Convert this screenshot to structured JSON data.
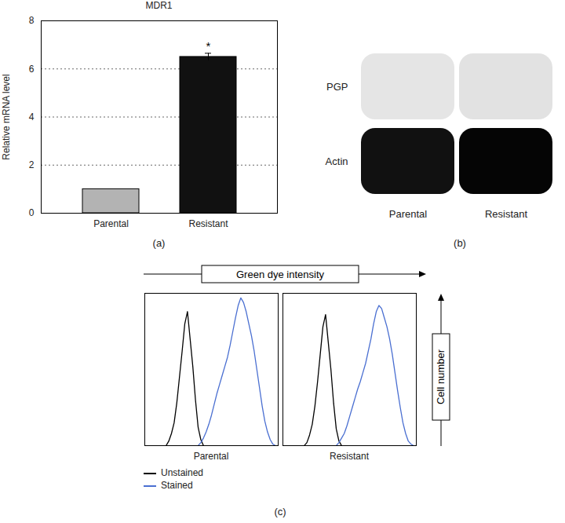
{
  "chart_data": [
    {
      "type": "bar",
      "title": "MDR1",
      "y_label": "Relative mRNA level",
      "caption": "(a)",
      "categories": [
        "Parental",
        "Resistant"
      ],
      "values": [
        1,
        6.5
      ],
      "errors": [
        0,
        0.15
      ],
      "colors": [
        "#b3b3b3",
        "#111111"
      ],
      "ylim": [
        0,
        8
      ],
      "yticks": [
        0,
        2,
        4,
        6,
        8
      ],
      "grid": true,
      "annotations": [
        {
          "category": "Resistant",
          "text": "*"
        }
      ]
    },
    {
      "type": "blot",
      "caption": "(b)",
      "rows": [
        "PGP",
        "Actin"
      ],
      "categories": [
        "Parental",
        "Resistant"
      ],
      "intensity": [
        [
          0.06,
          0.07
        ],
        [
          0.95,
          1.0
        ]
      ]
    },
    {
      "type": "line",
      "caption": "(c)",
      "x_label": "Green dye intensity",
      "y_label": "Cell number",
      "xlim": [
        0,
        100
      ],
      "ylim": [
        0,
        100
      ],
      "tick_labels": false,
      "panels": [
        {
          "title": "Parental",
          "series": [
            {
              "name": "Unstained",
              "color": "#000000",
              "x": [
                16,
                18,
                20,
                22,
                24,
                26,
                28,
                30,
                32,
                34,
                36,
                38,
                40,
                42,
                44
              ],
              "values": [
                0,
                3,
                8,
                15,
                28,
                45,
                62,
                80,
                88,
                70,
                52,
                30,
                12,
                4,
                0
              ]
            },
            {
              "name": "Stained",
              "color": "#4a6fd1",
              "x": [
                40,
                42,
                44,
                46,
                48,
                50,
                52,
                54,
                56,
                58,
                60,
                62,
                64,
                66,
                68,
                70,
                72,
                74,
                76,
                78,
                80,
                82,
                84,
                86,
                88,
                90,
                92,
                94,
                96,
                98
              ],
              "values": [
                0,
                2,
                5,
                9,
                14,
                20,
                27,
                34,
                40,
                46,
                52,
                58,
                66,
                75,
                84,
                92,
                97,
                94,
                88,
                80,
                72,
                62,
                50,
                38,
                26,
                16,
                9,
                4,
                1,
                0
              ]
            }
          ]
        },
        {
          "title": "Resistant",
          "series": [
            {
              "name": "Unstained",
              "color": "#000000",
              "x": [
                16,
                18,
                20,
                22,
                24,
                26,
                28,
                30,
                32,
                34,
                36,
                38,
                40,
                42,
                44
              ],
              "values": [
                0,
                2,
                7,
                14,
                26,
                42,
                60,
                78,
                86,
                68,
                50,
                28,
                11,
                3,
                0
              ]
            },
            {
              "name": "Stained",
              "color": "#4a6fd1",
              "x": [
                40,
                42,
                44,
                46,
                48,
                50,
                52,
                54,
                56,
                58,
                60,
                62,
                64,
                66,
                68,
                70,
                72,
                74,
                76,
                78,
                80,
                82,
                84,
                86,
                88,
                90,
                92,
                94,
                96,
                98
              ],
              "values": [
                0,
                2,
                5,
                8,
                13,
                19,
                25,
                31,
                37,
                42,
                48,
                54,
                62,
                70,
                80,
                88,
                92,
                90,
                84,
                78,
                70,
                60,
                48,
                36,
                25,
                15,
                8,
                3,
                1,
                0
              ]
            }
          ]
        }
      ]
    }
  ]
}
